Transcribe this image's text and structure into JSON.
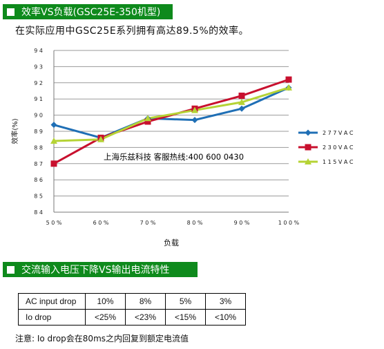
{
  "section1": {
    "title": "效率VS负载(GSC25E-350机型)"
  },
  "subtitle": "在实际应用中GSC25E系列拥有高达89.5%的效率。",
  "chart_data": {
    "type": "line",
    "categories": [
      "50%",
      "60%",
      "70%",
      "80%",
      "90%",
      "100%"
    ],
    "series": [
      {
        "name": "277VAC",
        "values": [
          89.4,
          88.6,
          89.8,
          89.7,
          90.4,
          91.7
        ],
        "color": "#1f6fb5",
        "marker": "diamond"
      },
      {
        "name": "230VAC",
        "values": [
          87.0,
          88.6,
          89.6,
          90.4,
          91.2,
          92.2
        ],
        "color": "#c8102e",
        "marker": "square"
      },
      {
        "name": "115VAC",
        "values": [
          88.4,
          88.5,
          89.8,
          90.3,
          90.8,
          91.7
        ],
        "color": "#b5d335",
        "marker": "triangle"
      }
    ],
    "xlabel": "负载",
    "ylabel": "效率(%)",
    "ylim": [
      84,
      94
    ],
    "yticks": [
      "84",
      "85",
      "86",
      "87",
      "88",
      "89",
      "90",
      "91",
      "92",
      "93",
      "94"
    ],
    "grid": true,
    "legend": "right",
    "annotation": "上海乐兹科技 客服热线:400 600 0430"
  },
  "section2": {
    "title": "交流输入电压下降VS输出电流特性"
  },
  "table": {
    "rows": [
      [
        "AC input drop",
        "10%",
        "8%",
        "5%",
        "3%"
      ],
      [
        "Io drop",
        "<25%",
        "<23%",
        "<15%",
        "<10%"
      ]
    ]
  },
  "note": "注意: Io drop会在80ms之内回复到额定电流值"
}
